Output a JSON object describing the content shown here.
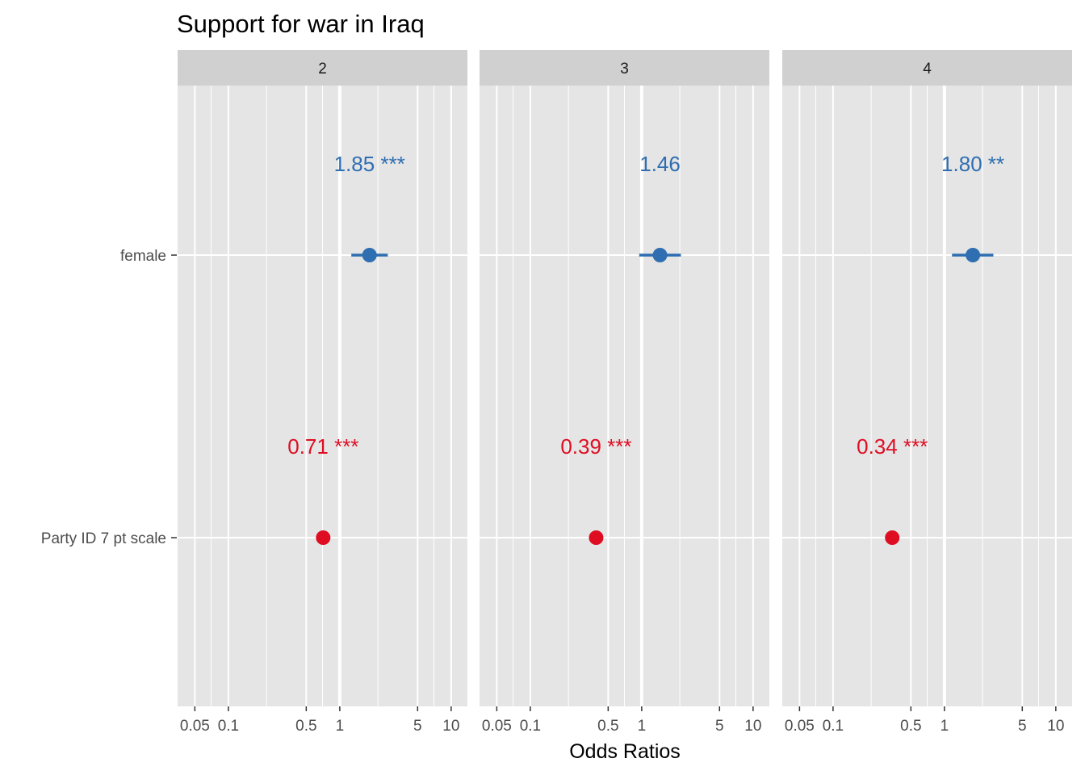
{
  "chart_data": {
    "type": "scatter",
    "subtype": "forest-plot",
    "title": "Support for war in Iraq",
    "xlabel": "Odds Ratios",
    "ylabel": "",
    "x_scale": "log10",
    "xlim": [
      0.035,
      14
    ],
    "x_ticks": [
      {
        "value": 0.05,
        "label": "0.05"
      },
      {
        "value": 0.1,
        "label": "0.1"
      },
      {
        "value": 0.5,
        "label": "0.5"
      },
      {
        "value": 1,
        "label": "1"
      },
      {
        "value": 5,
        "label": "5"
      },
      {
        "value": 10,
        "label": "10"
      }
    ],
    "categories": [
      "female",
      "Party ID 7 pt scale"
    ],
    "colors": {
      "positive": "#2f6eb1",
      "negative": "#de0d22"
    },
    "panel_background": "#e5e5e5",
    "strip_background": "#d0d0d0",
    "grid": true,
    "legend": "none",
    "panels": [
      {
        "facet": "2",
        "points": [
          {
            "term": "female",
            "estimate": 1.85,
            "ci_low": 1.27,
            "ci_high": 2.7,
            "label": "1.85 ***",
            "color": "#2f6eb1"
          },
          {
            "term": "Party ID 7 pt scale",
            "estimate": 0.71,
            "ci_low": 0.67,
            "ci_high": 0.75,
            "label": "0.71 ***",
            "color": "#de0d22"
          }
        ]
      },
      {
        "facet": "3",
        "points": [
          {
            "term": "female",
            "estimate": 1.46,
            "ci_low": 0.95,
            "ci_high": 2.25,
            "label": "1.46",
            "color": "#2f6eb1"
          },
          {
            "term": "Party ID 7 pt scale",
            "estimate": 0.39,
            "ci_low": 0.36,
            "ci_high": 0.42,
            "label": "0.39 ***",
            "color": "#de0d22"
          }
        ]
      },
      {
        "facet": "4",
        "points": [
          {
            "term": "female",
            "estimate": 1.8,
            "ci_low": 1.17,
            "ci_high": 2.75,
            "label": "1.80 **",
            "color": "#2f6eb1"
          },
          {
            "term": "Party ID 7 pt scale",
            "estimate": 0.34,
            "ci_low": 0.315,
            "ci_high": 0.365,
            "label": "0.34 ***",
            "color": "#de0d22"
          }
        ]
      }
    ]
  }
}
